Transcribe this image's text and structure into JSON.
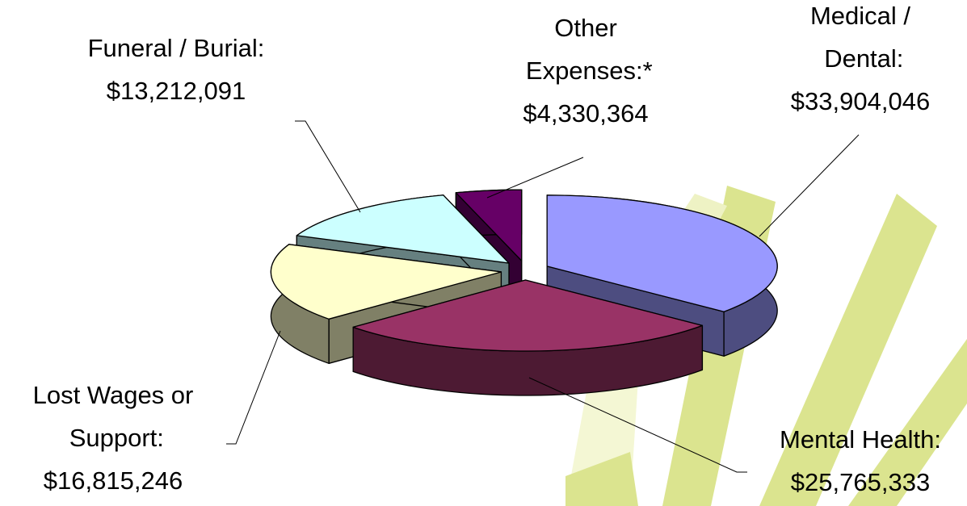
{
  "chart_data": {
    "type": "pie",
    "three_d": true,
    "exploded": true,
    "categories": [
      "Medical / Dental:",
      "Mental Health:",
      "Lost Wages or Support:",
      "Funeral / Burial:",
      "Other Expenses:*"
    ],
    "values": [
      33904046,
      25765333,
      16815246,
      13212091,
      4330364
    ],
    "value_labels": [
      "$33,904,046",
      "$25,765,333",
      "$16,815,246",
      "$13,212,091",
      "$4,330,364"
    ],
    "colors": [
      "#9999ff",
      "#993366",
      "#ffffcc",
      "#ccffff",
      "#660066"
    ]
  }
}
